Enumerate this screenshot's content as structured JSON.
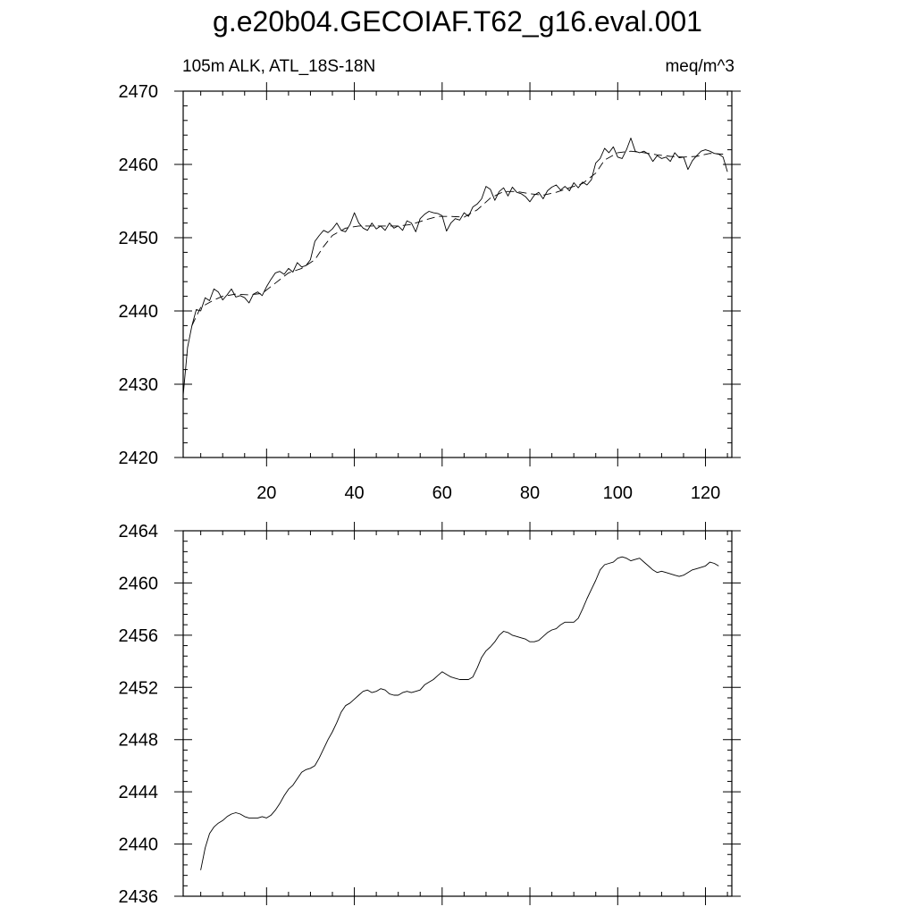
{
  "title": "g.e20b04.GECOIAF.T62_g16.eval.001",
  "subtitle_left": "105m ALK, ATL_18S-18N",
  "subtitle_right": "meq/m^3",
  "colors": {
    "line": "#000000",
    "background": "#ffffff"
  },
  "chart_data": [
    {
      "type": "line",
      "xlim": [
        1,
        126
      ],
      "ylim": [
        2420,
        2470
      ],
      "x_ticks": [
        20,
        40,
        60,
        80,
        100,
        120
      ],
      "y_ticks": [
        2420,
        2430,
        2440,
        2450,
        2460,
        2470
      ],
      "x_tick_labels": [
        "20",
        "40",
        "60",
        "80",
        "100",
        "120"
      ],
      "y_tick_labels": [
        "2420",
        "2430",
        "2440",
        "2450",
        "2460",
        "2470"
      ],
      "series": [
        {
          "style": "solid",
          "x": [
            1,
            2,
            3,
            4,
            5,
            6,
            7,
            8,
            9,
            10,
            11,
            12,
            13,
            14,
            15,
            16,
            17,
            18,
            19,
            20,
            21,
            22,
            23,
            24,
            25,
            26,
            27,
            28,
            29,
            30,
            31,
            32,
            33,
            34,
            35,
            36,
            37,
            38,
            39,
            40,
            41,
            42,
            43,
            44,
            45,
            46,
            47,
            48,
            49,
            50,
            51,
            52,
            53,
            54,
            55,
            56,
            57,
            58,
            59,
            60,
            61,
            62,
            63,
            64,
            65,
            66,
            67,
            68,
            69,
            70,
            71,
            72,
            73,
            74,
            75,
            76,
            77,
            78,
            79,
            80,
            81,
            82,
            83,
            84,
            85,
            86,
            87,
            88,
            89,
            90,
            91,
            92,
            93,
            94,
            95,
            96,
            97,
            98,
            99,
            100,
            101,
            102,
            103,
            104,
            105,
            106,
            107,
            108,
            109,
            110,
            111,
            112,
            113,
            114,
            115,
            116,
            117,
            118,
            119,
            120,
            121,
            122,
            123,
            124,
            125
          ],
          "y": [
            2428.5,
            2435.0,
            2438.0,
            2440.2,
            2440.0,
            2441.8,
            2441.4,
            2443.0,
            2442.6,
            2441.5,
            2442.2,
            2443.0,
            2441.9,
            2442.1,
            2441.8,
            2441.1,
            2442.3,
            2442.6,
            2442.1,
            2443.3,
            2444.3,
            2445.2,
            2445.4,
            2445.0,
            2445.8,
            2445.3,
            2446.6,
            2446.0,
            2446.2,
            2447.0,
            2449.5,
            2450.3,
            2451.0,
            2450.7,
            2451.2,
            2452.0,
            2451.0,
            2450.8,
            2451.8,
            2453.4,
            2452.0,
            2451.3,
            2451.0,
            2452.0,
            2451.2,
            2451.6,
            2451.0,
            2452.0,
            2451.3,
            2451.6,
            2451.0,
            2452.3,
            2452.0,
            2450.8,
            2452.6,
            2453.2,
            2453.6,
            2453.4,
            2453.3,
            2453.0,
            2450.9,
            2452.0,
            2452.6,
            2452.4,
            2453.4,
            2452.9,
            2454.2,
            2454.6,
            2455.3,
            2457.0,
            2456.6,
            2455.1,
            2456.3,
            2456.8,
            2455.7,
            2456.9,
            2456.2,
            2456.0,
            2455.6,
            2454.9,
            2455.8,
            2456.2,
            2455.3,
            2456.4,
            2456.9,
            2457.2,
            2456.5,
            2457.0,
            2456.4,
            2457.5,
            2456.8,
            2457.6,
            2457.2,
            2457.9,
            2460.2,
            2460.8,
            2462.2,
            2461.6,
            2462.4,
            2461.0,
            2460.8,
            2462.0,
            2463.6,
            2461.8,
            2461.6,
            2461.8,
            2461.4,
            2460.4,
            2461.2,
            2460.8,
            2461.0,
            2460.4,
            2461.6,
            2460.9,
            2461.0,
            2459.3,
            2460.5,
            2461.2,
            2461.8,
            2462.0,
            2461.8,
            2461.5,
            2461.4,
            2461.0,
            2459.0
          ]
        },
        {
          "style": "dashed",
          "x": [
            3,
            5,
            8,
            10,
            13,
            16,
            19,
            22,
            25,
            28,
            31,
            33,
            35,
            38,
            41,
            44,
            47,
            50,
            53,
            56,
            59,
            62,
            65,
            68,
            71,
            74,
            77,
            80,
            83,
            86,
            89,
            92,
            95,
            97,
            100,
            103,
            106,
            109,
            112,
            115,
            118,
            121,
            124
          ],
          "y": [
            2438.0,
            2440.5,
            2441.5,
            2442.0,
            2442.3,
            2442.2,
            2442.4,
            2443.8,
            2445.2,
            2445.8,
            2447.0,
            2448.8,
            2450.3,
            2451.3,
            2451.6,
            2451.6,
            2451.6,
            2451.6,
            2451.8,
            2452.4,
            2452.9,
            2452.9,
            2452.8,
            2453.8,
            2455.4,
            2456.3,
            2456.3,
            2456.0,
            2455.8,
            2456.2,
            2456.8,
            2457.4,
            2458.8,
            2460.6,
            2461.6,
            2461.8,
            2461.6,
            2461.3,
            2461.1,
            2461.0,
            2461.1,
            2461.5,
            2461.4
          ]
        }
      ]
    },
    {
      "type": "line",
      "xlim": [
        1,
        126
      ],
      "ylim": [
        2436,
        2464
      ],
      "x_ticks": [
        20,
        40,
        60,
        80,
        100,
        120
      ],
      "y_ticks": [
        2436,
        2440,
        2444,
        2448,
        2452,
        2456,
        2460,
        2464
      ],
      "y_tick_labels": [
        "2436",
        "2440",
        "2444",
        "2448",
        "2452",
        "2456",
        "2460",
        "2464"
      ],
      "series": [
        {
          "style": "solid",
          "x": [
            5,
            6,
            7,
            8,
            9,
            10,
            11,
            12,
            13,
            14,
            15,
            16,
            17,
            18,
            19,
            20,
            21,
            22,
            23,
            24,
            25,
            26,
            27,
            28,
            29,
            30,
            31,
            32,
            33,
            34,
            35,
            36,
            37,
            38,
            39,
            40,
            41,
            42,
            43,
            44,
            45,
            46,
            47,
            48,
            49,
            50,
            51,
            52,
            53,
            54,
            55,
            56,
            57,
            58,
            59,
            60,
            61,
            62,
            63,
            64,
            65,
            66,
            67,
            68,
            69,
            70,
            71,
            72,
            73,
            74,
            75,
            76,
            77,
            78,
            79,
            80,
            81,
            82,
            83,
            84,
            85,
            86,
            87,
            88,
            89,
            90,
            91,
            92,
            93,
            94,
            95,
            96,
            97,
            98,
            99,
            100,
            101,
            102,
            103,
            104,
            105,
            106,
            107,
            108,
            109,
            110,
            111,
            112,
            113,
            114,
            115,
            116,
            117,
            118,
            119,
            120,
            121,
            122,
            123
          ],
          "y": [
            2438.0,
            2439.7,
            2440.8,
            2441.3,
            2441.6,
            2441.8,
            2442.1,
            2442.3,
            2442.4,
            2442.3,
            2442.1,
            2442.0,
            2442.0,
            2442.0,
            2442.1,
            2442.0,
            2442.2,
            2442.6,
            2443.1,
            2443.7,
            2444.2,
            2444.5,
            2445.0,
            2445.5,
            2445.7,
            2445.8,
            2446.0,
            2446.6,
            2447.3,
            2448.0,
            2448.6,
            2449.3,
            2450.1,
            2450.6,
            2450.8,
            2451.1,
            2451.4,
            2451.7,
            2451.8,
            2451.6,
            2451.7,
            2451.9,
            2451.8,
            2451.5,
            2451.4,
            2451.4,
            2451.6,
            2451.7,
            2451.6,
            2451.7,
            2451.8,
            2452.2,
            2452.4,
            2452.6,
            2452.9,
            2453.2,
            2453.0,
            2452.8,
            2452.7,
            2452.6,
            2452.6,
            2452.6,
            2452.8,
            2453.5,
            2454.3,
            2454.8,
            2455.1,
            2455.5,
            2456.0,
            2456.3,
            2456.2,
            2456.0,
            2455.9,
            2455.8,
            2455.7,
            2455.5,
            2455.5,
            2455.6,
            2455.9,
            2456.2,
            2456.4,
            2456.5,
            2456.8,
            2457.0,
            2457.0,
            2457.0,
            2457.3,
            2458.0,
            2458.8,
            2459.5,
            2460.2,
            2461.0,
            2461.4,
            2461.5,
            2461.6,
            2461.9,
            2462.0,
            2461.9,
            2461.7,
            2461.8,
            2461.9,
            2461.6,
            2461.3,
            2461.0,
            2460.8,
            2460.9,
            2460.8,
            2460.7,
            2460.6,
            2460.5,
            2460.6,
            2460.8,
            2461.0,
            2461.1,
            2461.2,
            2461.3,
            2461.6,
            2461.5,
            2461.3
          ]
        }
      ]
    }
  ]
}
